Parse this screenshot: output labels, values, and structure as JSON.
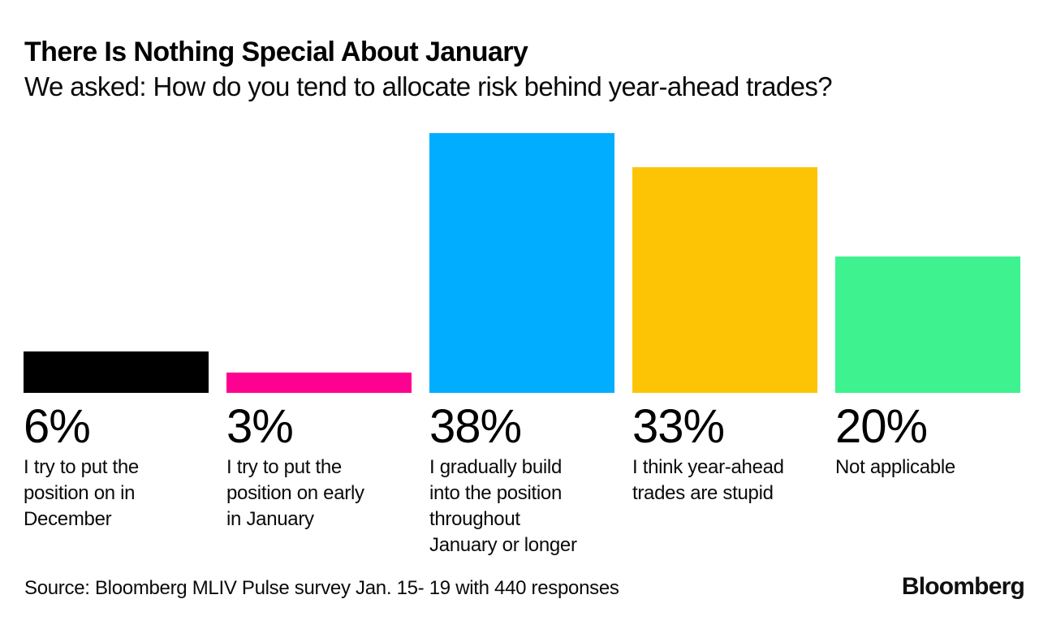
{
  "header": {
    "title": "There Is Nothing Special About January",
    "subtitle": "We asked: How do you tend to allocate risk behind year-ahead trades?"
  },
  "chart_data": {
    "type": "bar",
    "title": "There Is Nothing Special About January",
    "subtitle": "We asked: How do you tend to allocate risk behind year-ahead trades?",
    "categories": [
      "I try to put the position on in December",
      "I try to put the position on early in January",
      "I gradually build into the position throughout January or longer",
      "I think year-ahead trades are stupid",
      "Not applicable"
    ],
    "category_display_lines": [
      [
        "I try to put the",
        "position on in",
        "December"
      ],
      [
        "I try to put the",
        "position on early",
        "in January"
      ],
      [
        "I gradually build",
        "into the position",
        "throughout",
        "January or longer"
      ],
      [
        "I think year-ahead",
        "trades are stupid"
      ],
      [
        "Not applicable"
      ]
    ],
    "values": [
      6,
      3,
      38,
      33,
      20
    ],
    "value_labels": [
      "6%",
      "3%",
      "38%",
      "33%",
      "20%"
    ],
    "unit": "%",
    "bar_colors": [
      "#000000",
      "#FE0190",
      "#00ADFF",
      "#FDC405",
      "#3DF28F"
    ],
    "ylim": [
      0,
      38
    ],
    "grid": false,
    "legend": "none",
    "axes_shown": false,
    "value_label_position": "below-bar"
  },
  "footer": {
    "source": "Source: Bloomberg MLIV Pulse survey Jan. 15- 19 with 440 responses",
    "brand": "Bloomberg"
  }
}
